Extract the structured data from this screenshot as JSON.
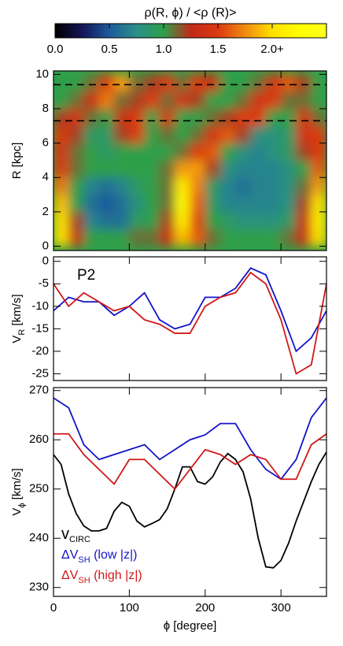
{
  "chart_data": [
    {
      "type": "heatmap",
      "colorbar_title": "ρ(R, ϕ) / <ρ (R)>",
      "clim": [
        0,
        2.5
      ],
      "cticks": [
        {
          "value": 0,
          "label": "0.0"
        },
        0.5,
        {
          "value": 1,
          "label": "1.0"
        },
        1.5,
        {
          "value": 2,
          "label": "2.0+"
        }
      ],
      "colors": [
        "#000000",
        "#141457",
        "#1e5a9c",
        "#2a8f8a",
        "#2f9f4a",
        "#c02a18",
        "#dc3a10",
        "#f08a10",
        "#ffe000",
        "#ffff00",
        "#ffff20"
      ],
      "xbins": [
        0,
        20,
        40,
        60,
        80,
        100,
        120,
        140,
        160,
        180,
        200,
        220,
        240,
        260,
        280,
        300,
        320,
        340,
        360
      ],
      "ybins": [
        0,
        1,
        2,
        3,
        4,
        5,
        6,
        7,
        8,
        9,
        10
      ],
      "z": [
        [
          2.0,
          1.3,
          1.0,
          1.0,
          1.0,
          1.1,
          1.1,
          1.3,
          1.9,
          1.6,
          1.1,
          1.0,
          1.0,
          1.0,
          1.0,
          1.1,
          1.3,
          2.0
        ],
        [
          2.0,
          1.2,
          0.7,
          0.6,
          0.6,
          0.9,
          1.0,
          1.2,
          2.1,
          1.5,
          1.0,
          0.9,
          0.8,
          0.8,
          0.8,
          0.9,
          1.3,
          2.1
        ],
        [
          1.9,
          1.0,
          0.6,
          0.5,
          0.6,
          0.8,
          1.0,
          1.1,
          2.2,
          1.6,
          0.9,
          0.7,
          0.7,
          0.7,
          0.7,
          0.8,
          1.2,
          2.0
        ],
        [
          1.7,
          1.0,
          0.7,
          0.6,
          0.7,
          0.9,
          1.0,
          1.1,
          2.1,
          1.7,
          0.9,
          0.7,
          0.6,
          0.7,
          0.7,
          0.8,
          1.1,
          1.8
        ],
        [
          1.5,
          1.1,
          1.0,
          1.0,
          1.0,
          1.0,
          1.0,
          1.1,
          1.8,
          1.8,
          1.2,
          0.8,
          0.7,
          0.7,
          0.7,
          0.8,
          1.0,
          1.6
        ],
        [
          1.4,
          1.1,
          1.0,
          0.9,
          1.0,
          1.0,
          1.0,
          1.0,
          1.1,
          1.5,
          1.6,
          1.0,
          0.8,
          0.7,
          0.8,
          0.9,
          1.2,
          1.5
        ],
        [
          1.5,
          1.2,
          0.9,
          0.9,
          1.2,
          1.5,
          1.0,
          1.1,
          1.0,
          1.1,
          1.4,
          1.6,
          1.2,
          0.8,
          0.8,
          0.9,
          1.4,
          1.5
        ],
        [
          1.2,
          1.4,
          1.1,
          1.0,
          1.3,
          1.5,
          1.0,
          1.4,
          1.0,
          1.0,
          1.1,
          1.2,
          1.5,
          1.5,
          1.0,
          1.0,
          1.4,
          1.1
        ],
        [
          1.0,
          1.1,
          1.3,
          1.7,
          1.1,
          1.2,
          1.5,
          1.1,
          1.4,
          1.2,
          1.0,
          1.0,
          1.1,
          1.4,
          1.5,
          1.1,
          1.1,
          1.0
        ],
        [
          1.0,
          1.0,
          1.1,
          1.5,
          1.8,
          1.1,
          1.2,
          1.5,
          1.1,
          1.5,
          1.3,
          1.0,
          1.0,
          1.1,
          1.4,
          1.6,
          1.2,
          1.0
        ]
      ],
      "xlim": [
        0,
        360
      ],
      "xticks": [
        0,
        100,
        200,
        300
      ],
      "ylim": [
        -0.25,
        10.2
      ],
      "yticks": [
        0,
        2,
        4,
        6,
        8,
        10
      ],
      "ylabel": "R [kpc]",
      "hlines": [
        9.4,
        7.3
      ],
      "hline_color": "#000000"
    },
    {
      "type": "line",
      "x": [
        0,
        20,
        40,
        60,
        80,
        100,
        120,
        140,
        160,
        180,
        200,
        220,
        240,
        260,
        280,
        300,
        320,
        340,
        360
      ],
      "series": [
        {
          "color": "#1414c8",
          "values": [
            -11,
            -8,
            -9,
            -9,
            -12,
            -10,
            -7,
            -13,
            -15,
            -14,
            -8,
            -8,
            -6,
            -1.5,
            -3,
            -11,
            -20,
            -17,
            -11
          ]
        },
        {
          "color": "#d01818",
          "values": [
            -5,
            -10,
            -7,
            -9,
            -11,
            -10,
            -13,
            -14,
            -16,
            -16,
            -10,
            -8,
            -7,
            -2.5,
            -5,
            -13,
            -25,
            -23,
            -5
          ]
        }
      ],
      "xlim": [
        0,
        360
      ],
      "xticks": [
        0,
        100,
        200,
        300
      ],
      "ylim": [
        -26.5,
        1
      ],
      "yticks": [
        0,
        -5,
        -10,
        -15,
        -20,
        -25
      ],
      "ylabel": "V",
      "ylabel_sub": "R",
      "ylabel_unit": " [km/s]",
      "annotation": "P2"
    },
    {
      "type": "line",
      "series": [
        {
          "name": "v",
          "name_sub": "CIRC",
          "color": "#000000",
          "x": [
            0,
            10,
            20,
            30,
            40,
            50,
            60,
            70,
            80,
            90,
            100,
            110,
            120,
            130,
            140,
            150,
            160,
            170,
            180,
            190,
            200,
            210,
            220,
            230,
            240,
            250,
            260,
            270,
            280,
            290,
            300,
            310,
            320,
            330,
            340,
            350,
            360
          ],
          "values": [
            257,
            255,
            249,
            245,
            242.5,
            241.5,
            241.5,
            242,
            245.5,
            247.3,
            246.5,
            243.5,
            242.3,
            243,
            243.8,
            246,
            250,
            254.5,
            254.5,
            251.5,
            251,
            252.5,
            255.5,
            257.2,
            256,
            253.5,
            248,
            240,
            234.2,
            234,
            235.5,
            239,
            243.5,
            247.5,
            251.5,
            255,
            257.5
          ]
        },
        {
          "name": "ΔV",
          "name_sub": "SH",
          "name_suffix": " (low |z|)",
          "color": "#1414c8",
          "x": [
            0,
            20,
            40,
            60,
            80,
            100,
            120,
            140,
            160,
            180,
            200,
            220,
            240,
            260,
            280,
            300,
            320,
            340,
            360
          ],
          "values": [
            268.5,
            266.5,
            259,
            256,
            257,
            258,
            259,
            256,
            258,
            260,
            261,
            263.3,
            263.3,
            258,
            254,
            252,
            256,
            264.5,
            268.5
          ]
        },
        {
          "name": "ΔV",
          "name_sub": "SH",
          "name_suffix": " (high |z|)",
          "color": "#d01818",
          "x": [
            0,
            20,
            40,
            60,
            80,
            100,
            120,
            140,
            160,
            180,
            200,
            220,
            240,
            260,
            280,
            300,
            320,
            340,
            360
          ],
          "values": [
            261.2,
            261.2,
            257,
            254,
            251,
            256,
            256,
            253,
            250,
            254,
            258,
            257,
            255,
            257,
            256,
            252,
            252,
            259,
            261.2
          ]
        }
      ],
      "xlim": [
        0,
        360
      ],
      "xticks": [
        0,
        100,
        200,
        300
      ],
      "ylim": [
        228.2,
        270.6
      ],
      "yticks": [
        230,
        240,
        250,
        260,
        270
      ],
      "ylabel": "V",
      "ylabel_sub": "ϕ",
      "ylabel_unit": " [km/s]",
      "xlabel": "ϕ [degree]",
      "legend": "lower left"
    }
  ]
}
